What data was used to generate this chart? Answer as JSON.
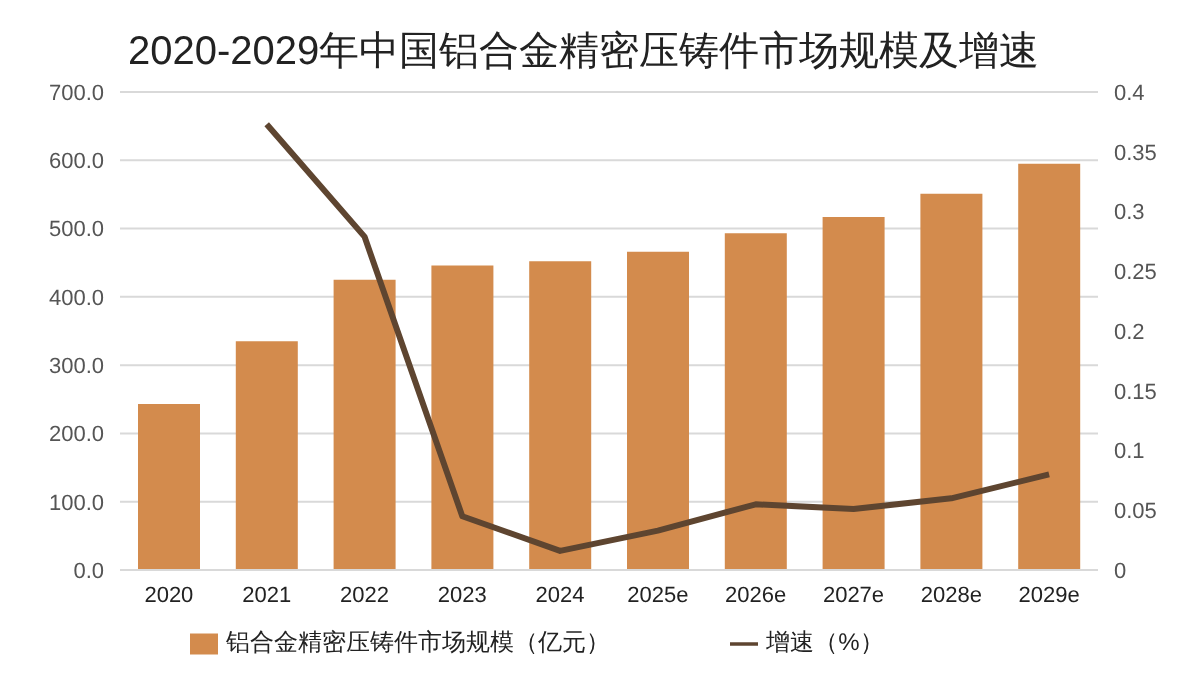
{
  "chart_data": {
    "type": "bar",
    "title": "2020-2029年中国铝合金精密压铸件市场规模及增速",
    "categories": [
      "2020",
      "2021",
      "2022",
      "2023",
      "2024",
      "2025e",
      "2026e",
      "2027e",
      "2028e",
      "2029e"
    ],
    "series": [
      {
        "name": "铝合金精密压铸件市场规模（亿元）",
        "color": "#d38b4d",
        "values": [
          243,
          335,
          425,
          446,
          452,
          466,
          493,
          517,
          551,
          595
        ]
      },
      {
        "name": "增速（%）",
        "type": "line",
        "axis": "y2",
        "color": "#5e4530",
        "values": [
          null,
          0.373,
          0.279,
          0.045,
          0.016,
          0.033,
          0.055,
          0.051,
          0.06,
          0.08
        ]
      }
    ],
    "ylim": [
      0,
      700
    ],
    "yticks": [
      {
        "value": 0,
        "label": "0.0"
      },
      {
        "value": 100,
        "label": "100.0"
      },
      {
        "value": 200,
        "label": "200.0"
      },
      {
        "value": 300,
        "label": "300.0"
      },
      {
        "value": 400,
        "label": "400.0"
      },
      {
        "value": 500,
        "label": "500.0"
      },
      {
        "value": 600,
        "label": "600.0"
      },
      {
        "value": 700,
        "label": "700.0"
      }
    ],
    "y2lim": [
      0,
      0.4
    ],
    "y2ticks": [
      0,
      0.05,
      0.1,
      0.15,
      0.2,
      0.25,
      0.3,
      0.35,
      0.4
    ],
    "grid": "y",
    "legend": "bottom",
    "marker": "none"
  }
}
